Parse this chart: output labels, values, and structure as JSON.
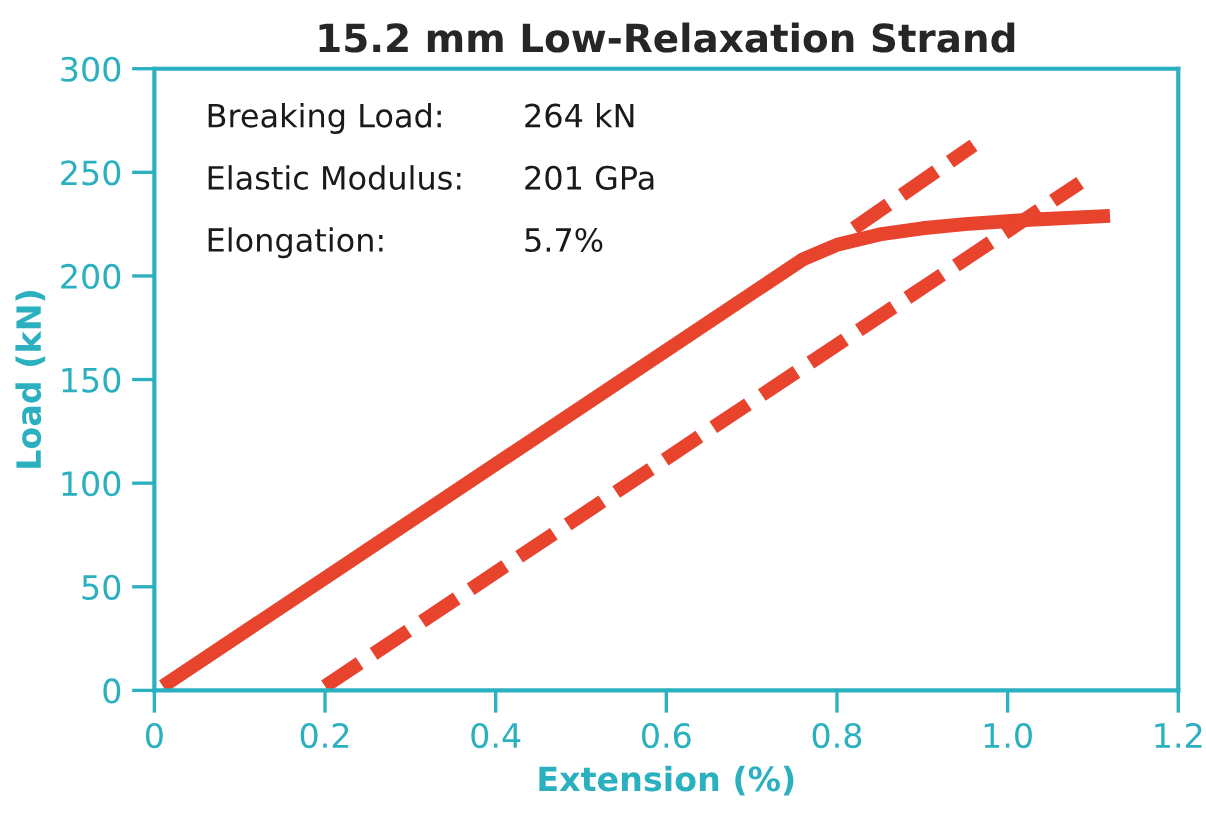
{
  "chart_data": {
    "type": "line",
    "title": "15.2 mm Low-Relaxation Strand",
    "xlabel": "Extension (%)",
    "ylabel": "Load (kN)",
    "annotations": [
      "Breaking Load:",
      "264 kN",
      "Elastic Modulus:",
      "201 GPa",
      "Elongation:",
      "5.7%"
    ],
    "series": [
      {
        "color": "#e8432d",
        "line_style": "solid",
        "x": [
          0.01,
          0.76,
          0.8,
          0.85,
          0.9,
          0.95,
          1.02,
          1.12
        ],
        "values": [
          2,
          208,
          215,
          220,
          223,
          225,
          227,
          229
        ]
      },
      {
        "color": "#e8432d",
        "line_style": "dashed",
        "x": [
          0.2,
          1.085
        ],
        "values": [
          2,
          245
        ]
      },
      {
        "color": "#e8432d",
        "line_style": "dashed",
        "x": [
          0.82,
          0.96
        ],
        "values": [
          223,
          263
        ]
      }
    ],
    "xlim": [
      0,
      1.2
    ],
    "ylim": [
      0,
      300
    ],
    "xticks": [
      0,
      0.2,
      0.4,
      0.6,
      0.8,
      {
        "value": 1.0,
        "label": "1.0"
      },
      1.2
    ],
    "yticks": [
      0,
      50,
      100,
      150,
      200,
      250,
      300
    ],
    "grid": false,
    "legend": false
  }
}
